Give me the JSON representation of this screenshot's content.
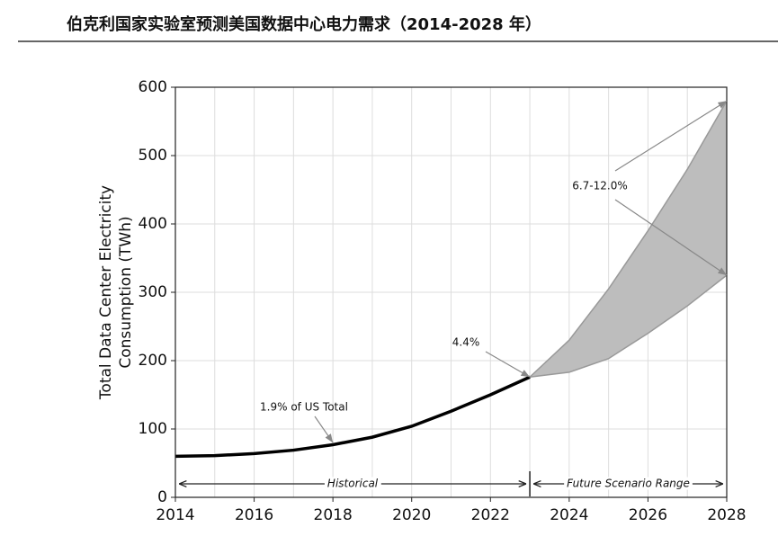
{
  "chart_data": {
    "type": "line",
    "title": "伯克利国家实验室预测美国数据中心电力需求（2014-2028 年）",
    "ylabel": [
      "Total Data Center Electricity",
      "Consumption (TWh)"
    ],
    "x": [
      2014,
      2015,
      2016,
      2017,
      2018,
      2019,
      2020,
      2021,
      2022,
      2023,
      2024,
      2025,
      2026,
      2027,
      2028
    ],
    "values": [
      60,
      61,
      64,
      69,
      77,
      88,
      104,
      126,
      150,
      176,
      null,
      null,
      null,
      null,
      null
    ],
    "band_upper": [
      null,
      null,
      null,
      null,
      null,
      null,
      null,
      null,
      null,
      176,
      230,
      305,
      390,
      480,
      580
    ],
    "band_lower": [
      null,
      null,
      null,
      null,
      null,
      null,
      null,
      null,
      null,
      176,
      183,
      203,
      240,
      280,
      325
    ],
    "color": "#000000",
    "band_color": "#bdbdbd",
    "xlim": [
      2014,
      2028
    ],
    "xticks": [
      2014,
      2016,
      2018,
      2020,
      2022,
      2024,
      2026,
      2028
    ],
    "ylim": [
      0,
      600
    ],
    "yticks": [
      0,
      100,
      200,
      300,
      400,
      500,
      600
    ],
    "grid": true,
    "annotations": [
      {
        "text": "1.9% of US Total",
        "xy": [
          [
            2018,
            80
          ]
        ]
      },
      {
        "text": "4.4%",
        "xy": [
          [
            2023,
            176
          ]
        ]
      },
      {
        "text": "6.7-12.0%",
        "xy": [
          [
            2028,
            580
          ],
          [
            2028,
            325
          ]
        ]
      }
    ],
    "spans": [
      {
        "text": "Historical",
        "from": 2014,
        "to": 2023
      },
      {
        "text": "Future Scenario Range",
        "from": 2023,
        "to": 2028
      }
    ]
  }
}
